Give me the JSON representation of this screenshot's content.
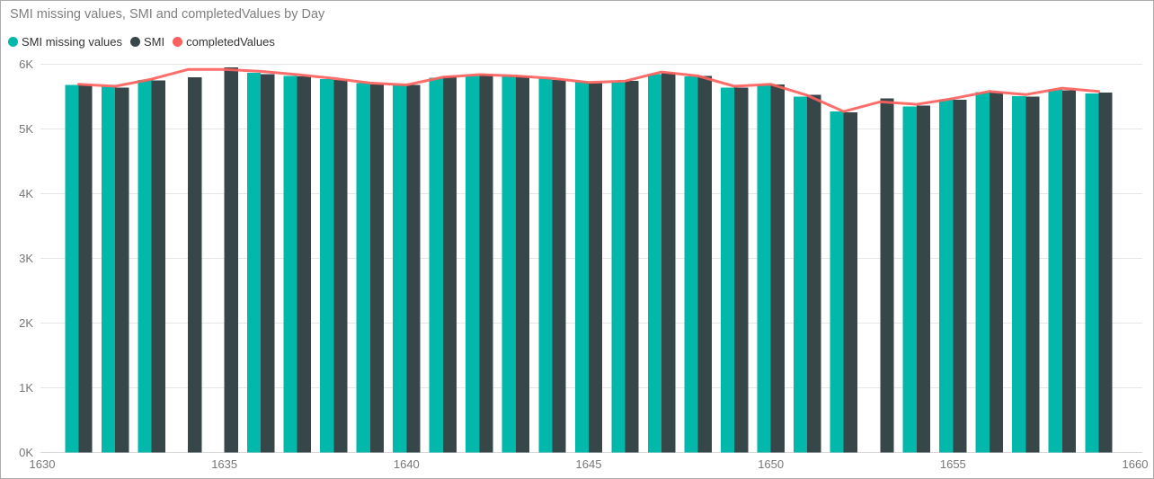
{
  "chart": {
    "title": "SMI missing values, SMI and completedValues by Day",
    "legend": [
      {
        "label": "SMI missing values",
        "color": "#01B8AA",
        "marker": "circle-icon"
      },
      {
        "label": "SMI",
        "color": "#374649",
        "marker": "circle-icon"
      },
      {
        "label": "completedValues",
        "color": "#FD625E",
        "marker": "circle-icon"
      }
    ],
    "colors": {
      "title_text": "#7f7f7f",
      "axis_text": "#777777",
      "gridline": "#e6e6e6",
      "baseline": "#d9d9d9",
      "background": "#ffffff",
      "border": "#ababab"
    },
    "chart_data": {
      "type": "combo",
      "title": "SMI missing values, SMI and completedValues by Day",
      "xlabel": "Day",
      "ylabel": "",
      "xlim": [
        1630,
        1660
      ],
      "ylim": [
        0,
        6000
      ],
      "x_ticks": [
        1630,
        1635,
        1640,
        1645,
        1650,
        1655,
        1660
      ],
      "y_ticks": [
        "0K",
        "1K",
        "2K",
        "3K",
        "4K",
        "5K",
        "6K"
      ],
      "grid": "horizontal",
      "legend_position": "top-left",
      "days": [
        1631,
        1632,
        1633,
        1634,
        1635,
        1636,
        1637,
        1638,
        1639,
        1640,
        1641,
        1642,
        1643,
        1644,
        1645,
        1646,
        1647,
        1648,
        1649,
        1650,
        1651,
        1652,
        1653,
        1654,
        1655,
        1656,
        1657,
        1658,
        1659
      ],
      "series": [
        {
          "name": "SMI missing values",
          "type": "bar",
          "color": "#01B8AA",
          "values": [
            5680,
            5650,
            5760,
            null,
            null,
            5870,
            5820,
            5770,
            5710,
            5680,
            5790,
            5820,
            5810,
            5780,
            5730,
            5720,
            5850,
            5810,
            5640,
            5680,
            5500,
            5270,
            null,
            5350,
            5460,
            5570,
            5510,
            5610,
            5550
          ]
        },
        {
          "name": "SMI",
          "type": "bar",
          "color": "#374649",
          "values": [
            5680,
            5640,
            5750,
            5800,
            5950,
            5850,
            5810,
            5760,
            5690,
            5680,
            5810,
            5840,
            5810,
            5760,
            5710,
            5740,
            5870,
            5820,
            5640,
            5690,
            5530,
            5260,
            5470,
            5360,
            5450,
            5560,
            5500,
            5600,
            5560
          ]
        },
        {
          "name": "completedValues",
          "type": "line",
          "color": "#FD625E",
          "values": [
            5690,
            5660,
            5770,
            5920,
            5920,
            5890,
            5840,
            5780,
            5710,
            5680,
            5800,
            5840,
            5820,
            5780,
            5720,
            5740,
            5880,
            5820,
            5660,
            5690,
            5520,
            5270,
            5420,
            5380,
            5470,
            5580,
            5530,
            5630,
            5580
          ]
        }
      ]
    }
  }
}
